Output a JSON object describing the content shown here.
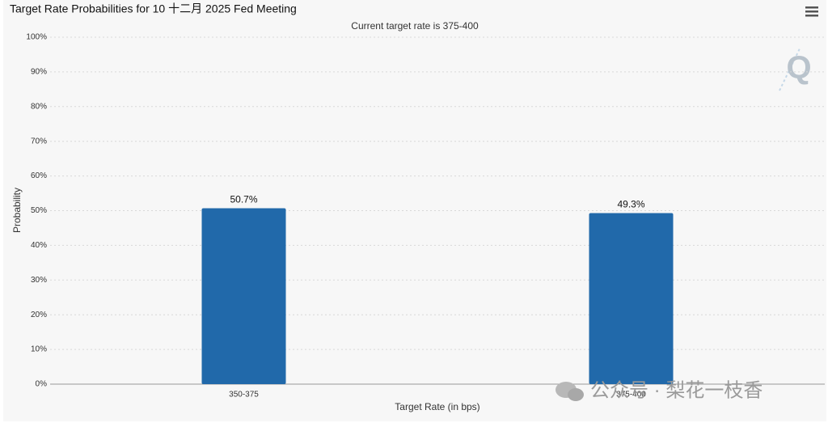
{
  "chart_data": {
    "type": "bar",
    "title": "Target Rate Probabilities for 10 十二月 2025 Fed Meeting",
    "subtitle": "Current target rate is 375-400",
    "y_label": "Probability",
    "x_label": "Target Rate (in bps)",
    "categories": [
      "350-375",
      "375-400"
    ],
    "values": [
      50.7,
      49.3
    ],
    "value_labels": [
      "50.7%",
      "49.3%"
    ],
    "color": "#2169aa",
    "ylim": [
      0,
      100
    ],
    "yticks": [
      {
        "value": 0,
        "label": "0%"
      },
      {
        "value": 10,
        "label": "10%"
      },
      {
        "value": 20,
        "label": "20%"
      },
      {
        "value": 30,
        "label": "30%"
      },
      {
        "value": 40,
        "label": "40%"
      },
      {
        "value": 50,
        "label": "50%"
      },
      {
        "value": 60,
        "label": "60%"
      },
      {
        "value": 70,
        "label": "70%"
      },
      {
        "value": 80,
        "label": "80%"
      },
      {
        "value": 90,
        "label": "90%"
      },
      {
        "value": 100,
        "label": "100%"
      }
    ],
    "grid": true,
    "logo": "Q",
    "watermark": "公众号 · 梨花一枝香"
  }
}
